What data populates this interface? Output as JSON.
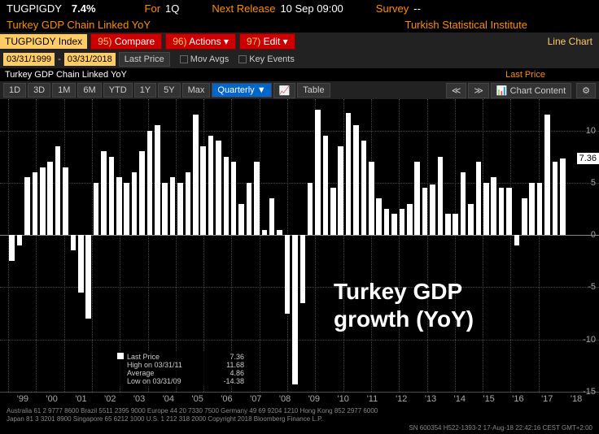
{
  "header": {
    "ticker": "TUGPIGDY",
    "value": "7.4%",
    "for_label": "For",
    "period": "1Q",
    "next_release_label": "Next Release",
    "next_release": "10 Sep 09:00",
    "survey_label": "Survey",
    "survey_value": "--",
    "title": "Turkey GDP Chain Linked YoY",
    "source": "Turkish Statistical Institute"
  },
  "ticker_bar": {
    "input": "TUGPIGDY Index",
    "compare_key": "95)",
    "compare": "Compare",
    "actions_key": "96)",
    "actions": "Actions",
    "edit_key": "97)",
    "edit": "Edit",
    "chart_type": "Line Chart"
  },
  "date_bar": {
    "from": "03/31/1999",
    "to": "03/31/2018",
    "last_price_btn": "Last Price",
    "mov_avgs": "Mov Avgs",
    "key_events": "Key Events"
  },
  "subtitle": {
    "left": "Turkey GDP Chain Linked YoY",
    "right": "Last Price"
  },
  "periods": [
    "1D",
    "3D",
    "1M",
    "6M",
    "YTD",
    "1Y",
    "5Y",
    "Max",
    "Quarterly ▼"
  ],
  "period_active": "Quarterly ▼",
  "extra_btns": {
    "chart_icon": "📈",
    "table": "Table",
    "prev": "≪",
    "next": "≫",
    "content": "Chart Content",
    "gear": "⚙"
  },
  "chart": {
    "type": "bar",
    "ylim": [
      -15,
      13
    ],
    "yticks": [
      -15,
      -10,
      -5,
      0,
      5,
      10
    ],
    "zero_y": 0,
    "grid_color": "#444",
    "bar_color": "#ffffff",
    "bg_color": "#000000",
    "price_tag": "7.36",
    "x_labels": [
      "'99",
      "'00",
      "'01",
      "'02",
      "'03",
      "'04",
      "'05",
      "'06",
      "'07",
      "'08",
      "'09",
      "'10",
      "'11",
      "'12",
      "'13",
      "'14",
      "'15",
      "'16",
      "'17",
      "'18"
    ],
    "values": [
      -2.5,
      -1.0,
      5.5,
      6.0,
      6.5,
      7.0,
      8.5,
      6.5,
      -1.5,
      -5.5,
      -8.0,
      5.0,
      8.0,
      7.5,
      5.5,
      5.0,
      6.0,
      8.0,
      10.0,
      10.5,
      5.0,
      5.5,
      5.0,
      6.0,
      11.5,
      8.5,
      9.5,
      9.0,
      7.5,
      7.0,
      3.0,
      5.0,
      7.0,
      0.5,
      3.5,
      0.5,
      -7.5,
      -14.3,
      -6.5,
      5.0,
      12.0,
      9.5,
      4.5,
      8.5,
      11.7,
      10.5,
      9.0,
      7.0,
      3.5,
      2.5,
      2.0,
      2.5,
      3.0,
      7.0,
      4.5,
      4.8,
      7.5,
      2.0,
      2.0,
      6.0,
      3.0,
      7.0,
      5.0,
      5.5,
      4.5,
      4.5,
      -1.0,
      3.5,
      5.0,
      5.0,
      11.5,
      7.0,
      7.36
    ],
    "overlay": "Turkey GDP\ngrowth (YoY)"
  },
  "legend": {
    "rows": [
      [
        "Last Price",
        "7.36"
      ],
      [
        "High on 03/31/11",
        "11.68"
      ],
      [
        "Average",
        "4.86"
      ],
      [
        "Low on 03/31/09",
        "-14.38"
      ]
    ]
  },
  "footer": {
    "line1": "Australia 61 2 9777 8600 Brazil 5511 2395 9000 Europe 44 20 7330 7500 Germany 49 69 9204 1210 Hong Kong 852 2977 6000",
    "line2": "Japan 81 3 3201 8900      Singapore 65 6212 1000      U.S. 1 212 318 2000          Copyright 2018 Bloomberg Finance L.P.",
    "line3": "SN 600354 H522-1393-2 17-Aug-18 22:42:16 CEST GMT+2:00"
  }
}
